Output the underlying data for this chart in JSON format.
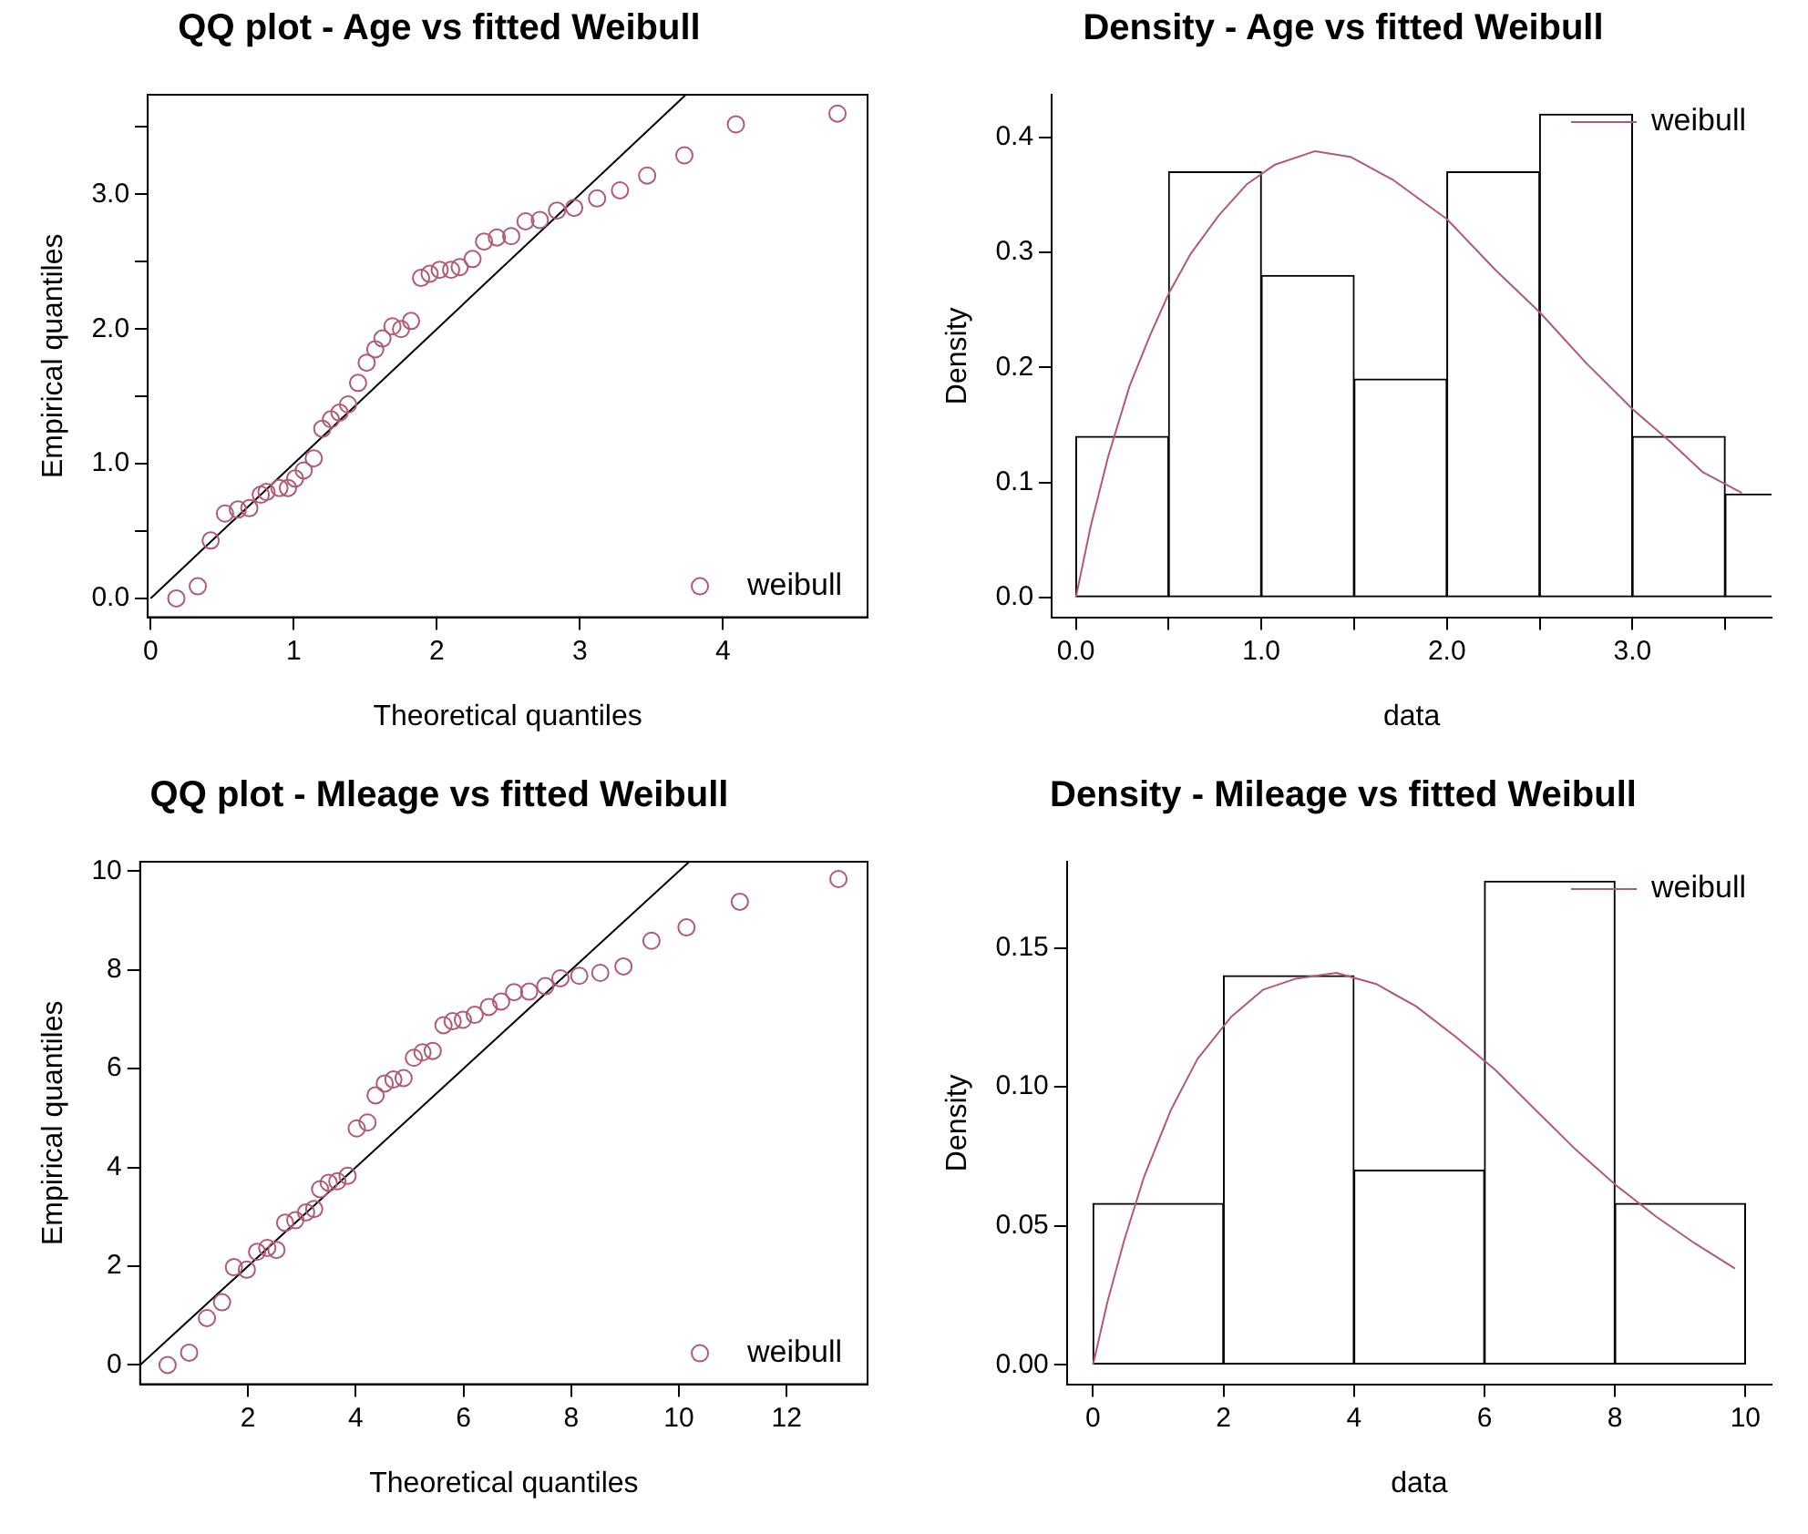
{
  "chart_data": [
    {
      "type": "scatter",
      "title": "QQ plot - Age vs fitted Weibull",
      "xlabel": "Theoretical quantiles",
      "ylabel": "Empirical quantiles",
      "xlim": [
        -0.02,
        5.01
      ],
      "xticks": [
        0,
        1,
        2,
        3,
        4
      ],
      "ylim": [
        -0.14,
        3.74
      ],
      "yticks": [
        {
          "value": 0,
          "label": "0.0"
        },
        {
          "value": 0.5,
          "label": null
        },
        {
          "value": 1,
          "label": "1.0"
        },
        {
          "value": 1.5,
          "label": null
        },
        {
          "value": 2,
          "label": "2.0"
        },
        {
          "value": 2.5,
          "label": null
        },
        {
          "value": 3,
          "label": "3.0"
        },
        {
          "value": 3.5,
          "label": null
        }
      ],
      "legend": "bottom right",
      "series": [
        {
          "name": "weibull",
          "color": "#b25a73",
          "marker": "circle",
          "x": [
            0.18,
            0.33,
            0.42,
            0.52,
            0.61,
            0.69,
            0.77,
            0.81,
            0.9,
            0.96,
            1.01,
            1.07,
            1.14,
            1.2,
            1.26,
            1.32,
            1.38,
            1.45,
            1.51,
            1.57,
            1.62,
            1.69,
            1.75,
            1.82,
            1.89,
            1.95,
            2.02,
            2.1,
            2.16,
            2.25,
            2.33,
            2.42,
            2.52,
            2.62,
            2.72,
            2.84,
            2.96,
            3.12,
            3.28,
            3.47,
            3.73,
            4.09,
            4.8
          ],
          "values": [
            0,
            0.09,
            0.43,
            0.63,
            0.66,
            0.67,
            0.77,
            0.79,
            0.82,
            0.82,
            0.89,
            0.95,
            1.04,
            1.26,
            1.33,
            1.38,
            1.44,
            1.6,
            1.75,
            1.85,
            1.93,
            2.02,
            2,
            2.06,
            2.38,
            2.41,
            2.44,
            2.44,
            2.46,
            2.52,
            2.65,
            2.68,
            2.69,
            2.8,
            2.81,
            2.88,
            2.9,
            2.97,
            3.03,
            3.14,
            3.29,
            3.52,
            3.6
          ]
        },
        {
          "type": "line",
          "color": "#000000",
          "x": [
            0,
            3.74
          ],
          "values": [
            0,
            3.74
          ]
        }
      ]
    },
    {
      "type": "histogram",
      "title": "Density - Age vs fitted Weibull",
      "xlabel": "data",
      "ylabel": "Density",
      "xlim": [
        -0.13,
        3.75
      ],
      "xticks": [
        {
          "value": 0,
          "label": "0.0"
        },
        {
          "value": 0.5,
          "label": null
        },
        {
          "value": 1,
          "label": "1.0"
        },
        {
          "value": 1.5,
          "label": null
        },
        {
          "value": 2,
          "label": "2.0"
        },
        {
          "value": 2.5,
          "label": null
        },
        {
          "value": 3,
          "label": "3.0"
        },
        {
          "value": 3.5,
          "label": null
        }
      ],
      "ylim": [
        -0.017,
        0.437
      ],
      "yticks": [
        {
          "value": 0,
          "label": "0.0"
        },
        {
          "value": 0.1,
          "label": "0.1"
        },
        {
          "value": 0.2,
          "label": "0.2"
        },
        {
          "value": 0.3,
          "label": "0.3"
        },
        {
          "value": 0.4,
          "label": "0.4"
        }
      ],
      "legend": "top right",
      "series": [
        {
          "type": "histogram",
          "color": "#ffffff",
          "bins": [
            0,
            0.5,
            1,
            1.5,
            2,
            2.5,
            3,
            3.5,
            4
          ],
          "values": [
            0.14,
            0.37,
            0.28,
            0.19,
            0.37,
            0.42,
            0.14,
            0.09
          ]
        },
        {
          "type": "line",
          "name": "weibull",
          "color": "#b25a73",
          "x": [
            0,
            0.08,
            0.175,
            0.29,
            0.4,
            0.5,
            0.62,
            0.77,
            0.92,
            1.07,
            1.29,
            1.48,
            1.71,
            2,
            2.26,
            2.5,
            2.75,
            3,
            3.2,
            3.38,
            3.59
          ],
          "values": [
            0,
            0.062,
            0.123,
            0.184,
            0.228,
            0.264,
            0.299,
            0.332,
            0.359,
            0.376,
            0.388,
            0.383,
            0.363,
            0.329,
            0.285,
            0.248,
            0.204,
            0.164,
            0.136,
            0.109,
            0.091
          ]
        }
      ]
    },
    {
      "type": "scatter",
      "title": "QQ plot - Mleage vs fitted Weibull",
      "xlabel": "Theoretical quantiles",
      "ylabel": "Empirical quantiles",
      "xlim": [
        0,
        13.5
      ],
      "xticks": [
        2,
        4,
        6,
        8,
        10,
        12
      ],
      "ylim": [
        -0.39,
        10.19
      ],
      "yticks": [
        0,
        2,
        4,
        6,
        8,
        10
      ],
      "legend": "bottom right",
      "series": [
        {
          "name": "weibull",
          "color": "#b25a73",
          "marker": "circle",
          "x": [
            0.51,
            0.91,
            1.24,
            1.52,
            1.74,
            1.98,
            2.17,
            2.36,
            2.53,
            2.69,
            2.88,
            3.08,
            3.23,
            3.34,
            3.5,
            3.66,
            3.85,
            4.02,
            4.22,
            4.37,
            4.54,
            4.7,
            4.89,
            5.08,
            5.24,
            5.43,
            5.63,
            5.8,
            5.99,
            6.21,
            6.47,
            6.7,
            6.94,
            7.22,
            7.52,
            7.8,
            8.15,
            8.54,
            8.97,
            9.49,
            10.14,
            11.13,
            12.96
          ],
          "values": [
            0,
            0.25,
            0.95,
            1.27,
            1.98,
            1.93,
            2.29,
            2.37,
            2.33,
            2.88,
            2.93,
            3.09,
            3.16,
            3.56,
            3.69,
            3.72,
            3.83,
            4.79,
            4.91,
            5.46,
            5.7,
            5.78,
            5.81,
            6.22,
            6.33,
            6.36,
            6.88,
            6.96,
            6.99,
            7.09,
            7.25,
            7.36,
            7.55,
            7.56,
            7.67,
            7.83,
            7.88,
            7.94,
            8.07,
            8.59,
            8.86,
            9.38,
            9.84
          ]
        },
        {
          "type": "line",
          "color": "#000000",
          "x": [
            0,
            10.19
          ],
          "values": [
            0,
            10.19
          ]
        }
      ]
    },
    {
      "type": "histogram",
      "title": "Density - Mileage vs fitted Weibull",
      "xlabel": "data",
      "ylabel": "Density",
      "xlim": [
        -0.4,
        10.4
      ],
      "xticks": [
        0,
        2,
        4,
        6,
        8,
        10
      ],
      "ylim": [
        -0.007,
        0.181
      ],
      "yticks": [
        {
          "value": 0,
          "label": "0.00"
        },
        {
          "value": 0.05,
          "label": "0.05"
        },
        {
          "value": 0.1,
          "label": "0.10"
        },
        {
          "value": 0.15,
          "label": "0.15"
        }
      ],
      "legend": "top right",
      "series": [
        {
          "type": "histogram",
          "color": "#ffffff",
          "bins": [
            0,
            2,
            4,
            6,
            8,
            10
          ],
          "values": [
            0.058,
            0.14,
            0.07,
            0.174,
            0.058
          ]
        },
        {
          "type": "line",
          "name": "weibull",
          "color": "#b25a73",
          "x": [
            0,
            0.22,
            0.48,
            0.78,
            1.19,
            1.6,
            2.11,
            2.61,
            3.12,
            3.73,
            4.34,
            4.95,
            5.56,
            6.17,
            6.79,
            7.4,
            8.01,
            8.62,
            9.23,
            9.84
          ],
          "values": [
            0,
            0.0225,
            0.045,
            0.0675,
            0.0915,
            0.11,
            0.125,
            0.135,
            0.139,
            0.141,
            0.137,
            0.129,
            0.118,
            0.106,
            0.0915,
            0.0774,
            0.0647,
            0.0535,
            0.0436,
            0.0346
          ]
        }
      ]
    }
  ]
}
